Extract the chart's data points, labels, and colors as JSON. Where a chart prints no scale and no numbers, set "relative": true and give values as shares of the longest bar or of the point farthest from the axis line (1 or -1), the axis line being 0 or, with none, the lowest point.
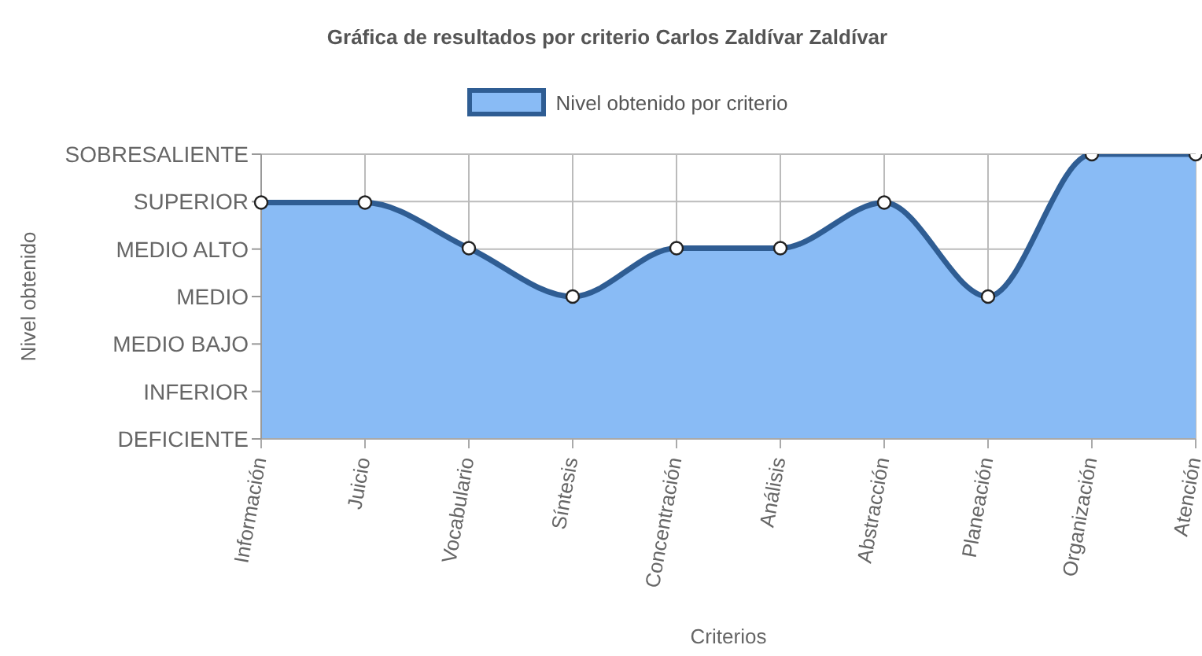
{
  "chart_data": {
    "type": "area",
    "title": "Gráfica de resultados por criterio Carlos Zaldívar Zaldívar",
    "xlabel": "Criterios",
    "categories": [
      "Información",
      "Juicio",
      "Vocabulario",
      "Síntesis",
      "Concentración",
      "Análisis",
      "Abstracción",
      "Planeación",
      "Organización",
      "Atención"
    ],
    "series": [
      {
        "name": "Nivel obtenido por criterio",
        "color": "#2f5d93",
        "values": [
          0.83,
          0.83,
          0.67,
          0.5,
          0.67,
          0.67,
          0.83,
          0.5,
          1,
          1
        ]
      }
    ],
    "relative": true,
    "annotations": [
      "Nivel obtenido",
      "DEFICIENTE",
      "INFERIOR",
      "MEDIO BAJO",
      "MEDIO",
      "MEDIO ALTO",
      "SUPERIOR",
      "SOBRESALIENTE"
    ],
    "grid": true,
    "legend": "top",
    "marker": "circle",
    "line_style": "solid"
  }
}
